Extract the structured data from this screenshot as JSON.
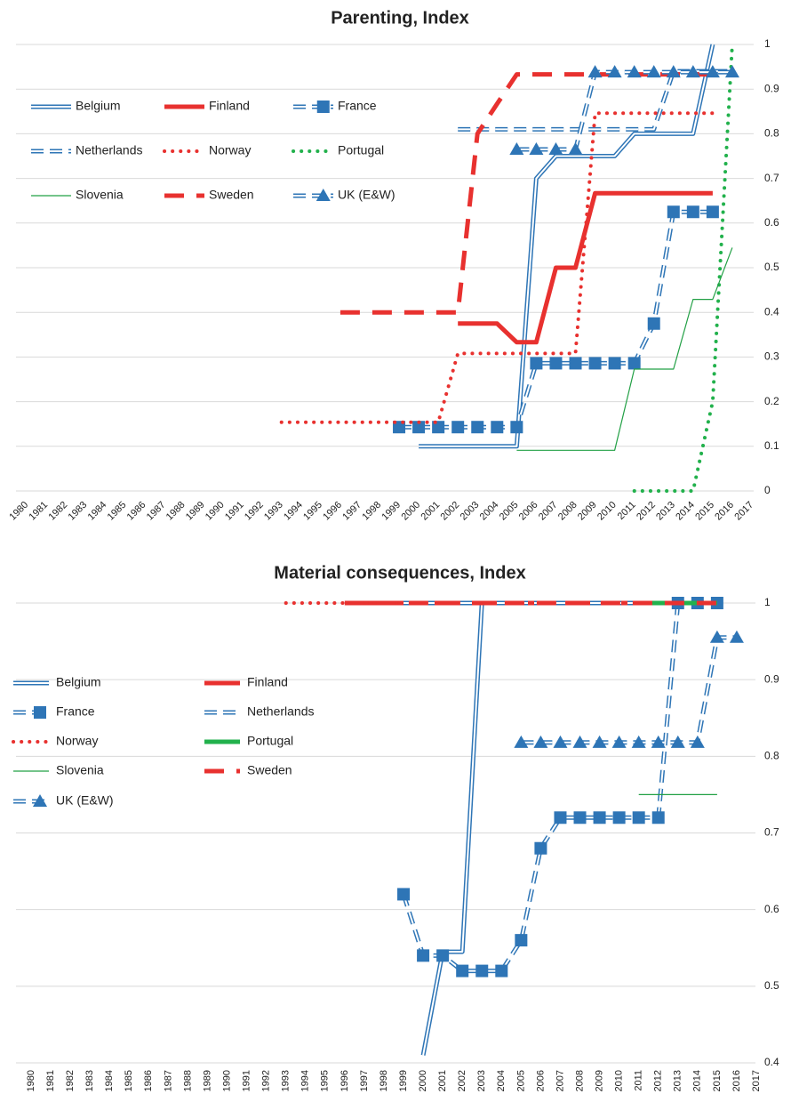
{
  "chart_data": [
    {
      "type": "line",
      "title": "Parenting, Index",
      "categories": [
        "1980",
        "1981",
        "1982",
        "1983",
        "1984",
        "1985",
        "1986",
        "1987",
        "1988",
        "1989",
        "1990",
        "1991",
        "1992",
        "1993",
        "1994",
        "1995",
        "1996",
        "1997",
        "1998",
        "1999",
        "2000",
        "2001",
        "2002",
        "2003",
        "2004",
        "2005",
        "2006",
        "2007",
        "2008",
        "2009",
        "2010",
        "2011",
        "2012",
        "2013",
        "2014",
        "2015",
        "2016",
        "2017"
      ],
      "ylim": [
        0,
        1
      ],
      "yticks": [
        0,
        0.1,
        0.2,
        0.3,
        0.4,
        0.5,
        0.6,
        0.7,
        0.8,
        0.9,
        1
      ],
      "grid": true,
      "series": [
        {
          "name": "Belgium",
          "color": "#2e75b6",
          "line": "double",
          "values": [
            null,
            null,
            null,
            null,
            null,
            null,
            null,
            null,
            null,
            null,
            null,
            null,
            null,
            null,
            null,
            null,
            null,
            null,
            null,
            null,
            0.1,
            0.1,
            0.1,
            0.1,
            0.1,
            0.1,
            0.7,
            0.75,
            0.75,
            0.75,
            0.75,
            0.8,
            0.8,
            0.8,
            0.8,
            1,
            null,
            null
          ]
        },
        {
          "name": "Finland",
          "color": "#e8312f",
          "line": "solid",
          "values": [
            null,
            null,
            null,
            null,
            null,
            null,
            null,
            null,
            null,
            null,
            null,
            null,
            null,
            null,
            null,
            null,
            null,
            null,
            null,
            null,
            null,
            null,
            0.375,
            0.375,
            0.375,
            0.333,
            0.333,
            0.5,
            0.5,
            0.667,
            0.667,
            0.667,
            0.667,
            0.667,
            0.667,
            0.667,
            null,
            null
          ]
        },
        {
          "name": "France",
          "color": "#2e75b6",
          "line": "double-dashed",
          "marker": "square",
          "values": [
            null,
            null,
            null,
            null,
            null,
            null,
            null,
            null,
            null,
            null,
            null,
            null,
            null,
            null,
            null,
            null,
            null,
            null,
            null,
            0.143,
            0.143,
            0.143,
            0.143,
            0.143,
            0.143,
            0.143,
            0.286,
            0.286,
            0.286,
            0.286,
            0.286,
            0.286,
            0.375,
            0.625,
            0.625,
            0.625,
            null,
            null
          ]
        },
        {
          "name": "Netherlands",
          "color": "#2e75b6",
          "line": "double-dashed",
          "values": [
            null,
            null,
            null,
            null,
            null,
            null,
            null,
            null,
            null,
            null,
            null,
            null,
            null,
            null,
            null,
            null,
            null,
            null,
            null,
            null,
            null,
            null,
            0.81,
            0.81,
            0.81,
            0.81,
            0.81,
            0.81,
            0.81,
            0.81,
            0.81,
            0.81,
            0.81,
            0.94,
            0.94,
            0.94,
            0.94,
            null
          ]
        },
        {
          "name": "Norway",
          "color": "#e8312f",
          "line": "dotted",
          "values": [
            null,
            null,
            null,
            null,
            null,
            null,
            null,
            null,
            null,
            null,
            null,
            null,
            null,
            0.154,
            0.154,
            0.154,
            0.154,
            0.154,
            0.154,
            0.154,
            0.154,
            0.154,
            0.308,
            0.308,
            0.308,
            0.308,
            0.308,
            0.308,
            0.308,
            0.846,
            0.846,
            0.846,
            0.846,
            0.846,
            0.846,
            0.846,
            null,
            null
          ]
        },
        {
          "name": "Portugal",
          "color": "#22b14c",
          "line": "dotted",
          "values": [
            null,
            null,
            null,
            null,
            null,
            null,
            null,
            null,
            null,
            null,
            null,
            null,
            null,
            null,
            null,
            null,
            null,
            null,
            null,
            null,
            null,
            null,
            null,
            null,
            null,
            null,
            null,
            null,
            null,
            null,
            null,
            0,
            0,
            0,
            0,
            0.2,
            1,
            null
          ]
        },
        {
          "name": "Slovenia",
          "color": "#22a045",
          "line": "thin",
          "values": [
            null,
            null,
            null,
            null,
            null,
            null,
            null,
            null,
            null,
            null,
            null,
            null,
            null,
            null,
            null,
            null,
            null,
            null,
            null,
            null,
            null,
            null,
            null,
            null,
            null,
            0.091,
            0.091,
            0.091,
            0.091,
            0.091,
            0.091,
            0.273,
            0.273,
            0.273,
            0.429,
            0.429,
            0.545,
            null
          ]
        },
        {
          "name": "Sweden",
          "color": "#e8312f",
          "line": "dashed",
          "values": [
            null,
            null,
            null,
            null,
            null,
            null,
            null,
            null,
            null,
            null,
            null,
            null,
            null,
            null,
            null,
            null,
            0.4,
            0.4,
            0.4,
            0.4,
            0.4,
            0.4,
            0.4,
            0.8,
            0.867,
            0.933,
            0.933,
            0.933,
            0.933,
            0.933,
            0.933,
            0.933,
            0.933,
            0.933,
            0.933,
            0.933,
            null,
            null
          ]
        },
        {
          "name": "UK (E&W)",
          "color": "#2e75b6",
          "line": "double-dashed",
          "marker": "triangle",
          "values": [
            null,
            null,
            null,
            null,
            null,
            null,
            null,
            null,
            null,
            null,
            null,
            null,
            null,
            null,
            null,
            null,
            null,
            null,
            null,
            null,
            null,
            null,
            null,
            null,
            null,
            0.765,
            0.765,
            0.765,
            0.765,
            0.938,
            0.938,
            0.938,
            0.938,
            0.938,
            0.938,
            0.938,
            0.938,
            null
          ]
        }
      ]
    },
    {
      "type": "line",
      "title": "Material consequences, Index",
      "categories": [
        "1980",
        "1981",
        "1982",
        "1983",
        "1984",
        "1985",
        "1986",
        "1987",
        "1988",
        "1989",
        "1990",
        "1991",
        "1992",
        "1993",
        "1994",
        "1995",
        "1996",
        "1997",
        "1998",
        "1999",
        "2000",
        "2001",
        "2002",
        "2003",
        "2004",
        "2005",
        "2006",
        "2007",
        "2008",
        "2009",
        "2010",
        "2011",
        "2012",
        "2013",
        "2014",
        "2015",
        "2016",
        "2017"
      ],
      "ylim": [
        0.4,
        1
      ],
      "yticks": [
        0.4,
        0.5,
        0.6,
        0.7,
        0.8,
        0.9,
        1
      ],
      "grid": true,
      "series": [
        {
          "name": "Belgium",
          "color": "#2e75b6",
          "line": "double",
          "values": [
            null,
            null,
            null,
            null,
            null,
            null,
            null,
            null,
            null,
            null,
            null,
            null,
            null,
            null,
            null,
            null,
            null,
            null,
            null,
            null,
            0.41,
            0.545,
            0.545,
            1,
            1,
            1,
            1,
            1,
            1,
            1,
            1,
            1,
            1,
            1,
            1,
            1,
            null,
            null
          ]
        },
        {
          "name": "Finland",
          "color": "#e8312f",
          "line": "solid",
          "values": [
            null,
            null,
            null,
            null,
            null,
            null,
            null,
            null,
            null,
            null,
            null,
            null,
            null,
            null,
            null,
            null,
            1,
            1,
            1,
            1,
            1,
            1,
            1,
            1,
            1,
            1,
            1,
            1,
            1,
            1,
            1,
            1,
            1,
            1,
            1,
            1,
            null,
            null
          ]
        },
        {
          "name": "France",
          "color": "#2e75b6",
          "line": "double-dashed",
          "marker": "square",
          "values": [
            null,
            null,
            null,
            null,
            null,
            null,
            null,
            null,
            null,
            null,
            null,
            null,
            null,
            null,
            null,
            null,
            null,
            null,
            null,
            0.62,
            0.54,
            0.54,
            0.52,
            0.52,
            0.52,
            0.56,
            0.68,
            0.72,
            0.72,
            0.72,
            0.72,
            0.72,
            0.72,
            1,
            1,
            1,
            null,
            null
          ]
        },
        {
          "name": "Netherlands",
          "color": "#2e75b6",
          "line": "double-dashed",
          "values": [
            null,
            null,
            null,
            null,
            null,
            null,
            null,
            null,
            null,
            null,
            null,
            null,
            null,
            null,
            null,
            null,
            null,
            null,
            null,
            1,
            1,
            1,
            1,
            1,
            1,
            1,
            1,
            1,
            1,
            1,
            1,
            1,
            1,
            1,
            1,
            1,
            null,
            null
          ]
        },
        {
          "name": "Norway",
          "color": "#e8312f",
          "line": "dotted",
          "values": [
            null,
            null,
            null,
            null,
            null,
            null,
            null,
            null,
            null,
            null,
            null,
            null,
            null,
            1,
            1,
            1,
            1,
            1,
            1,
            1,
            null,
            null,
            null,
            null,
            null,
            null,
            null,
            null,
            null,
            null,
            null,
            null,
            null,
            null,
            null,
            null,
            null,
            null
          ]
        },
        {
          "name": "Portugal",
          "color": "#22b14c",
          "line": "solid",
          "values": [
            null,
            null,
            null,
            null,
            null,
            null,
            null,
            null,
            null,
            null,
            null,
            null,
            null,
            null,
            null,
            null,
            null,
            null,
            null,
            null,
            null,
            null,
            null,
            null,
            null,
            null,
            null,
            null,
            null,
            null,
            null,
            1,
            1,
            1,
            1,
            1,
            null,
            null
          ]
        },
        {
          "name": "Slovenia",
          "color": "#22a045",
          "line": "thin",
          "values": [
            null,
            null,
            null,
            null,
            null,
            null,
            null,
            null,
            null,
            null,
            null,
            null,
            null,
            null,
            null,
            null,
            null,
            null,
            null,
            null,
            null,
            null,
            null,
            null,
            null,
            null,
            null,
            null,
            null,
            null,
            null,
            0.75,
            0.75,
            0.75,
            0.75,
            0.75,
            null,
            null
          ]
        },
        {
          "name": "Sweden",
          "color": "#e8312f",
          "line": "dashed",
          "values": [
            null,
            null,
            null,
            null,
            null,
            null,
            null,
            null,
            null,
            null,
            null,
            null,
            null,
            null,
            null,
            null,
            1,
            1,
            1,
            1,
            1,
            1,
            1,
            1,
            1,
            1,
            1,
            1,
            1,
            1,
            1,
            1,
            1,
            1,
            1,
            1,
            null,
            null
          ]
        },
        {
          "name": "UK (E&W)",
          "color": "#2e75b6",
          "line": "double-dashed",
          "marker": "triangle",
          "values": [
            null,
            null,
            null,
            null,
            null,
            null,
            null,
            null,
            null,
            null,
            null,
            null,
            null,
            null,
            null,
            null,
            null,
            null,
            null,
            null,
            null,
            null,
            null,
            null,
            null,
            0.818,
            0.818,
            0.818,
            0.818,
            0.818,
            0.818,
            0.818,
            0.818,
            0.818,
            0.818,
            0.955,
            0.955,
            null
          ]
        }
      ]
    }
  ]
}
